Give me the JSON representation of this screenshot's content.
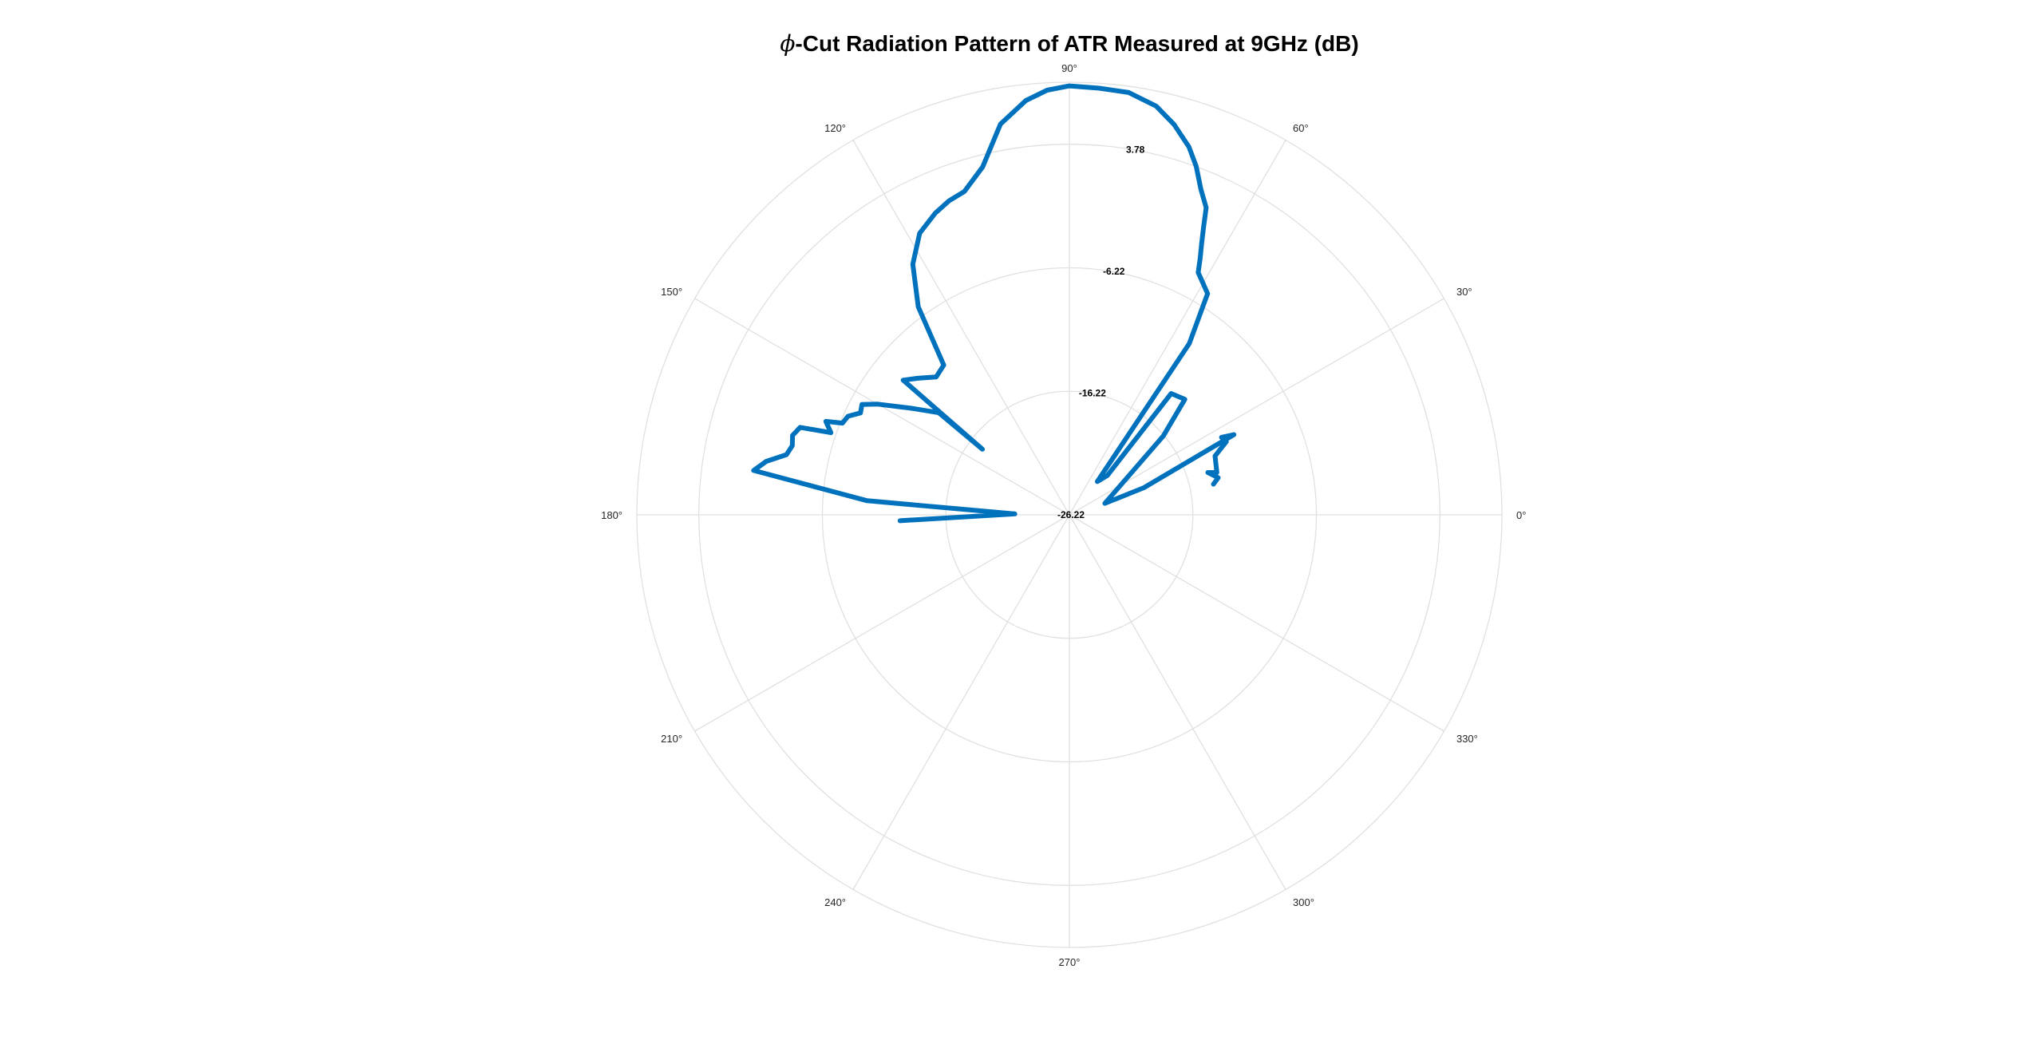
{
  "chart_data": {
    "type": "polar-line",
    "title_symbol": "ϕ",
    "title_text": "-Cut Radiation Pattern of ATR Measured at 9GHz (dB)",
    "theta_unit": "deg",
    "theta_ticks": [
      0,
      30,
      60,
      90,
      120,
      150,
      180,
      210,
      240,
      270,
      300,
      330
    ],
    "theta_tick_labels": [
      "0°",
      "30°",
      "60°",
      "90°",
      "120°",
      "150°",
      "180°",
      "210°",
      "240°",
      "270°",
      "300°",
      "330°"
    ],
    "rlim": [
      -26.22,
      8.8
    ],
    "r_grid": [
      -26.22,
      -16.22,
      -6.22,
      3.78,
      8.8
    ],
    "r_tick_labels": [
      "-26.22",
      "-16.22",
      "-6.22",
      "3.78"
    ],
    "grid": true,
    "series": [
      {
        "color": "#0072bd",
        "theta": [
          12,
          14,
          17,
          16,
          22,
          25,
          27,
          26,
          20,
          18,
          40,
          45,
          50,
          46,
          50,
          55,
          58,
          62,
          63,
          64,
          65,
          66,
          68,
          70,
          72,
          75,
          78,
          82,
          86,
          90,
          93,
          96,
          100,
          104,
          108,
          111,
          114,
          118,
          122,
          126,
          130,
          134,
          138,
          141,
          143,
          142,
          146,
          150,
          152,
          154,
          156,
          158,
          159,
          161,
          162,
          164,
          166,
          168,
          170,
          172,
          176,
          179,
          182
        ],
        "r": [
          -14.3,
          -13.8,
          -14.5,
          -13.8,
          -13.5,
          -12.2,
          -12.4,
          -11.4,
          -19.8,
          -23.2,
          -16.3,
          -13.0,
          -13.4,
          -21.8,
          -22.7,
          -9.3,
          -5.1,
          -4.0,
          -2.9,
          -1.8,
          -0.5,
          1.0,
          2.2,
          3.8,
          5.1,
          6.5,
          7.6,
          8.3,
          8.4,
          8.5,
          8.2,
          7.5,
          5.9,
          2.8,
          1.3,
          1.0,
          0.5,
          -0.4,
          -2.3,
          -5.4,
          -10.4,
          -10.7,
          -9.7,
          -8.9,
          -17.4,
          -12.8,
          -10.8,
          -8.3,
          -7.2,
          -7.4,
          -6.6,
          -6.4,
          -5.1,
          -5.8,
          -3.3,
          -2.9,
          -3.1,
          -2.8,
          -1.3,
          -0.4,
          -9.8,
          -21.8,
          -12.5
        ]
      }
    ]
  }
}
